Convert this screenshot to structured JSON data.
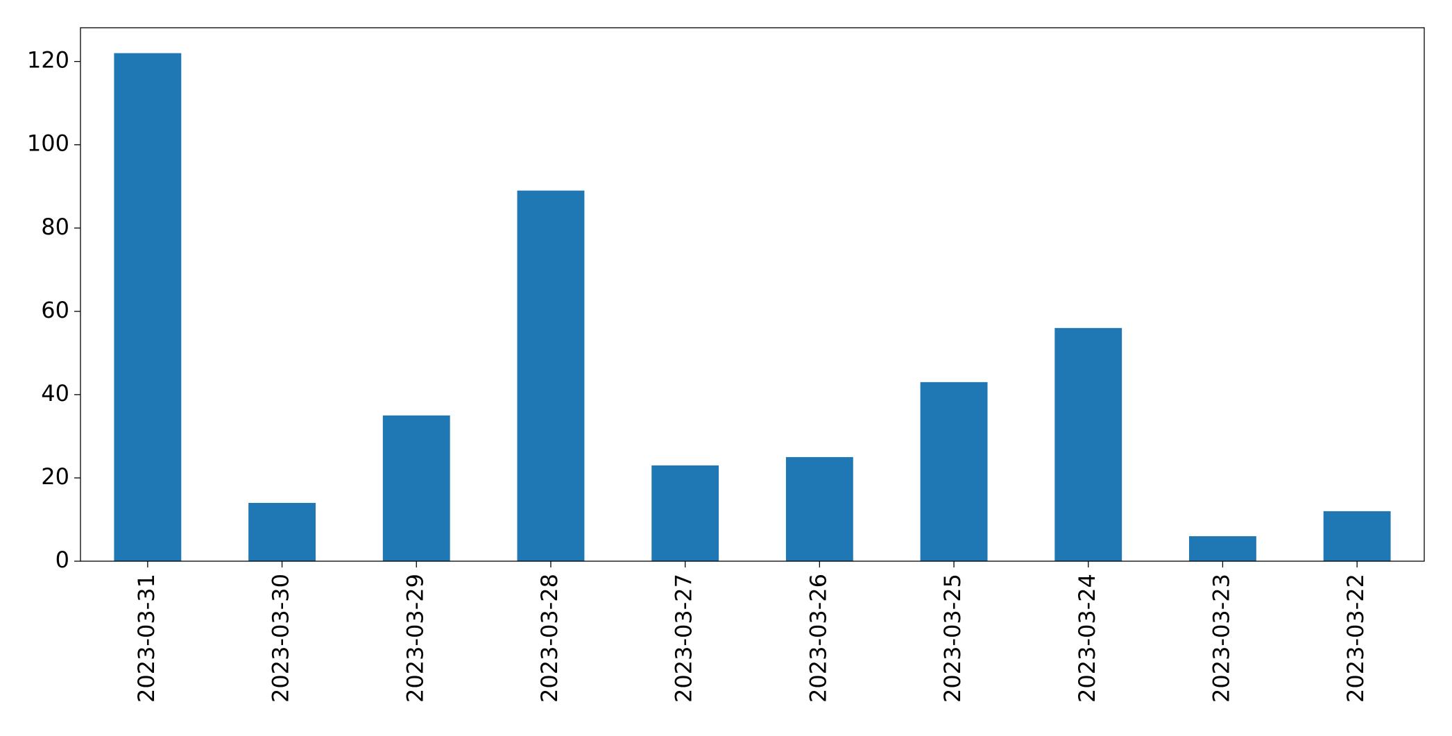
{
  "chart_data": {
    "type": "bar",
    "categories": [
      "2023-03-31",
      "2023-03-30",
      "2023-03-29",
      "2023-03-28",
      "2023-03-27",
      "2023-03-26",
      "2023-03-25",
      "2023-03-24",
      "2023-03-23",
      "2023-03-22"
    ],
    "values": [
      122,
      14,
      35,
      89,
      23,
      25,
      43,
      56,
      6,
      12
    ],
    "color": "#1f77b4",
    "ylim": [
      0,
      128.1
    ],
    "yticks": [
      0,
      20,
      40,
      60,
      80,
      100,
      120
    ],
    "grid": false
  }
}
